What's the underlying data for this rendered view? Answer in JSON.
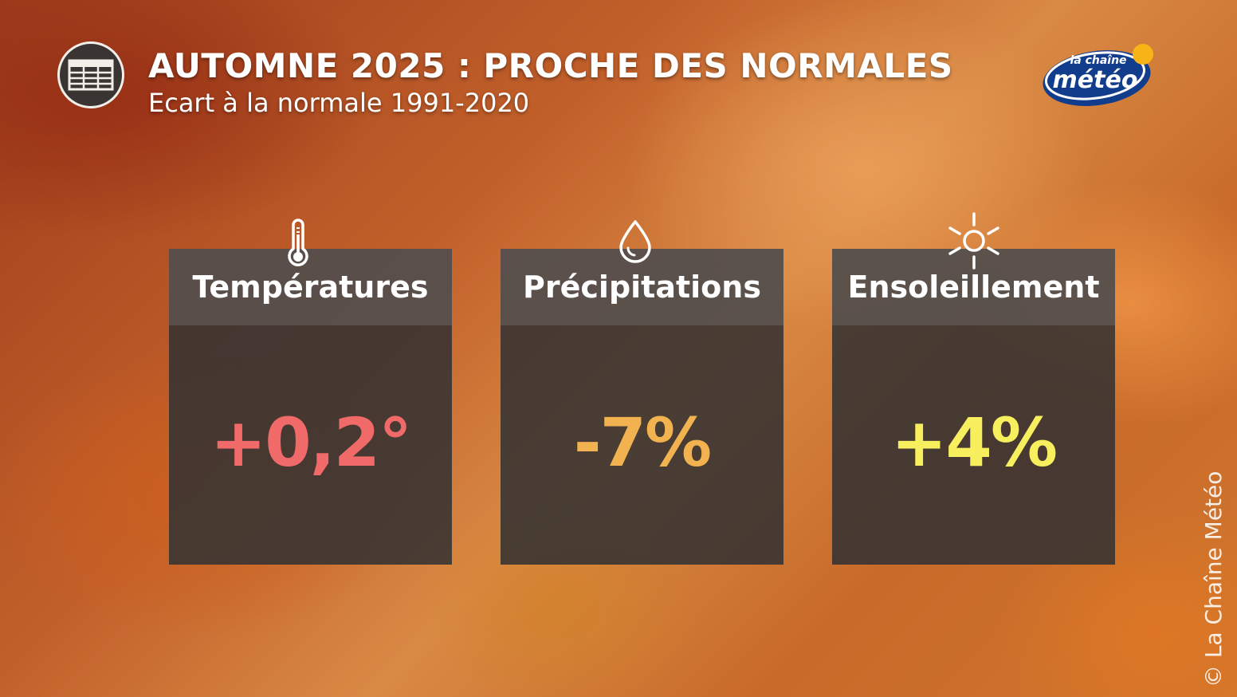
{
  "header": {
    "title": "AUTOMNE 2025 : PROCHE DES NORMALES",
    "subtitle": "Ecart à la normale 1991-2020",
    "icon": "table-icon"
  },
  "logo": {
    "line1": "la chaîne",
    "line2": "météo"
  },
  "cards": [
    {
      "title": "Températures",
      "value": "+0,2°",
      "icon": "thermometer-icon",
      "color": "#f06a6a"
    },
    {
      "title": "Précipitations",
      "value": "-7%",
      "icon": "droplet-icon",
      "color": "#f2b250"
    },
    {
      "title": "Ensoleillement",
      "value": "+4%",
      "icon": "sun-icon",
      "color": "#f7ef5e"
    }
  ],
  "copyright": "© La Chaîne Météo"
}
